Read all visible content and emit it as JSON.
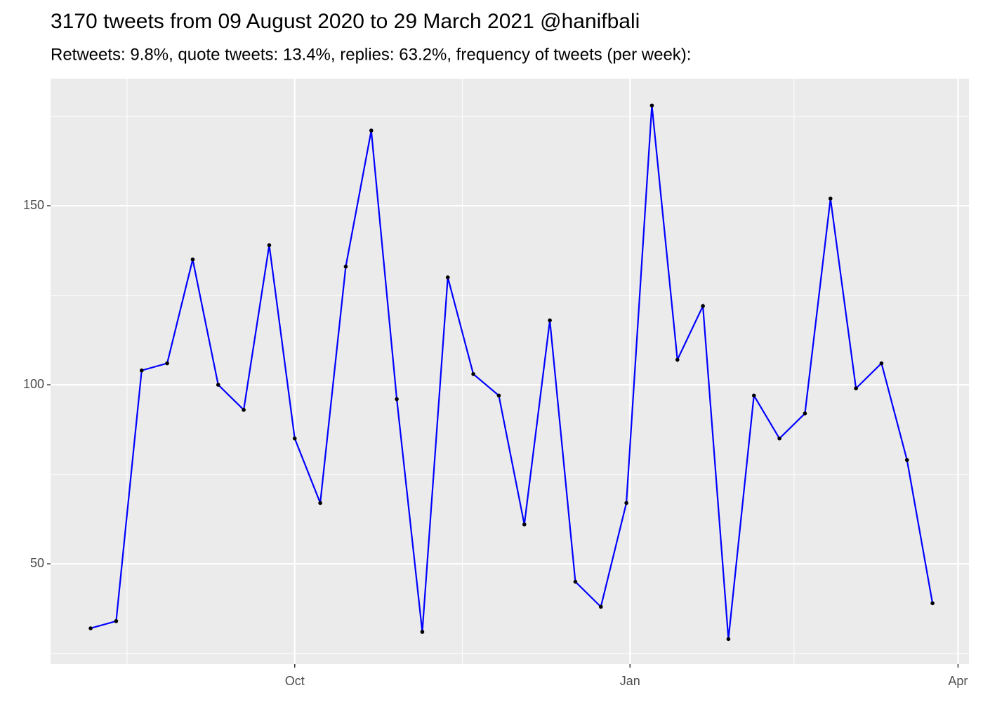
{
  "chart_data": {
    "type": "line",
    "title": "3170 tweets from 09 August 2020 to 29 March 2021 @hanifbali",
    "subtitle": "Retweets: 9.8%, quote tweets: 13.4%, replies: 63.2%, frequency of tweets (per week):",
    "x": [
      "2020-08-06",
      "2020-08-13",
      "2020-08-20",
      "2020-08-27",
      "2020-09-03",
      "2020-09-10",
      "2020-09-17",
      "2020-09-24",
      "2020-10-01",
      "2020-10-08",
      "2020-10-15",
      "2020-10-22",
      "2020-10-29",
      "2020-11-05",
      "2020-11-12",
      "2020-11-19",
      "2020-11-26",
      "2020-12-03",
      "2020-12-10",
      "2020-12-17",
      "2020-12-24",
      "2020-12-31",
      "2021-01-07",
      "2021-01-14",
      "2021-01-21",
      "2021-01-28",
      "2021-02-04",
      "2021-02-11",
      "2021-02-18",
      "2021-02-25",
      "2021-03-04",
      "2021-03-11",
      "2021-03-18",
      "2021-03-25"
    ],
    "values": [
      32,
      34,
      104,
      106,
      135,
      100,
      93,
      139,
      85,
      67,
      133,
      171,
      96,
      31,
      130,
      103,
      97,
      61,
      118,
      45,
      38,
      67,
      178,
      107,
      122,
      29,
      97,
      85,
      92,
      152,
      99,
      106,
      79,
      39
    ],
    "color": "#0000ff",
    "point_color": "#000000",
    "xlim": [
      "2020-07-26",
      "2021-04-04"
    ],
    "xticks": [
      {
        "value": "2020-10-01",
        "label": "Oct"
      },
      {
        "value": "2021-01-01",
        "label": "Jan"
      },
      {
        "value": "2021-04-01",
        "label": "Apr"
      }
    ],
    "ylim": [
      22,
      185.5
    ],
    "yticks": [
      50,
      100,
      150
    ],
    "grid": true
  }
}
